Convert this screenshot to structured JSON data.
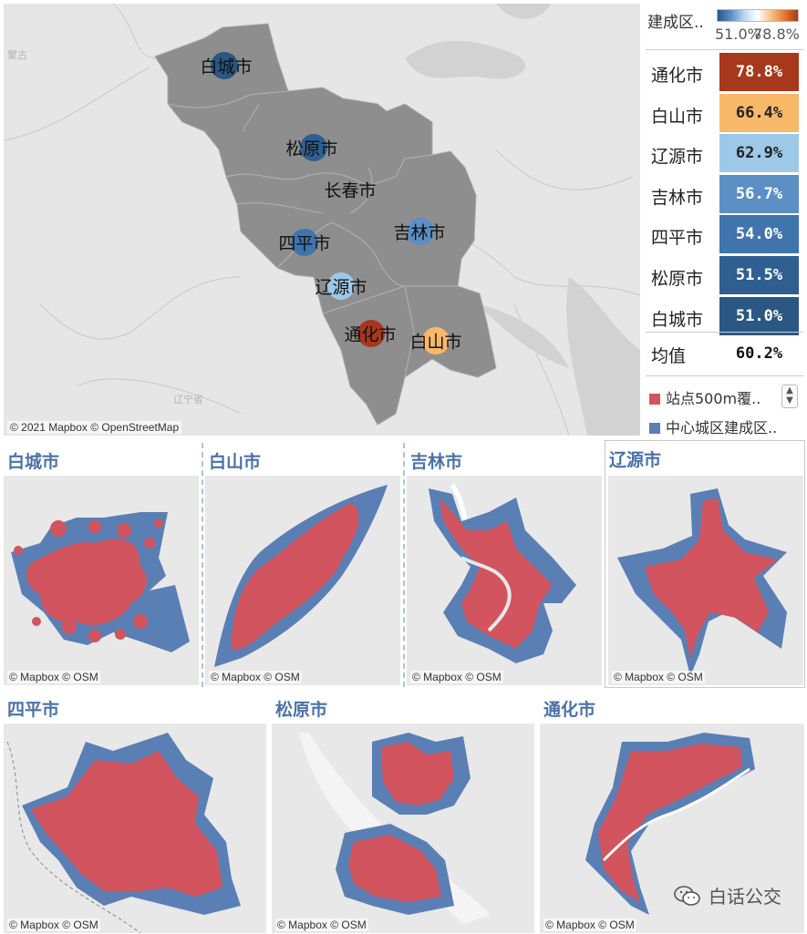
{
  "main_map": {
    "attribution": "© 2021 Mapbox © OpenStreetMap",
    "faint_labels": [
      "蒙古",
      "辽宁省"
    ],
    "cities": [
      {
        "name": "白城市",
        "value": 51.0,
        "color": "#2a5783"
      },
      {
        "name": "松原市",
        "value": 51.5,
        "color": "#2f5f90"
      },
      {
        "name": "长春市",
        "value": null,
        "color": null
      },
      {
        "name": "吉林市",
        "value": 56.7,
        "color": "#5b8fc5"
      },
      {
        "name": "四平市",
        "value": 54.0,
        "color": "#3f74ad"
      },
      {
        "name": "辽源市",
        "value": 62.9,
        "color": "#9dc8e8"
      },
      {
        "name": "通化市",
        "value": 78.8,
        "color": "#a8381b"
      },
      {
        "name": "白山市",
        "value": 66.4,
        "color": "#f8b869"
      }
    ]
  },
  "legend": {
    "color_title": "建成区..",
    "color_min": "51.0%",
    "color_max": "78.8%",
    "ranking": [
      {
        "city": "通化市",
        "value": "78.8%",
        "bg": "#a8381b",
        "fg": "#ffffff"
      },
      {
        "city": "白山市",
        "value": "66.4%",
        "bg": "#f8b869",
        "fg": "#222222"
      },
      {
        "city": "辽源市",
        "value": "62.9%",
        "bg": "#9dc8e8",
        "fg": "#222222"
      },
      {
        "city": "吉林市",
        "value": "56.7%",
        "bg": "#5b8fc5",
        "fg": "#ffffff"
      },
      {
        "city": "四平市",
        "value": "54.0%",
        "bg": "#3f74ad",
        "fg": "#ffffff"
      },
      {
        "city": "松原市",
        "value": "51.5%",
        "bg": "#2f5f90",
        "fg": "#ffffff"
      },
      {
        "city": "白城市",
        "value": "51.0%",
        "bg": "#2a5783",
        "fg": "#ffffff"
      }
    ],
    "average_label": "均值",
    "average_value": "60.2%",
    "keys": [
      {
        "label": "站点500m覆..",
        "color": "#d1545e"
      },
      {
        "label": "中心城区建成区..",
        "color": "#5a7fb5"
      }
    ]
  },
  "panels": [
    {
      "title": "白城市",
      "attribution": "© Mapbox © OSM"
    },
    {
      "title": "白山市",
      "attribution": "© Mapbox © OSM"
    },
    {
      "title": "吉林市",
      "attribution": "© Mapbox © OSM"
    },
    {
      "title": "辽源市",
      "attribution": "© Mapbox © OSM"
    },
    {
      "title": "四平市",
      "attribution": "© Mapbox © OSM"
    },
    {
      "title": "松原市",
      "attribution": "© Mapbox © OSM"
    },
    {
      "title": "通化市",
      "attribution": "© Mapbox © OSM"
    }
  ],
  "watermark": "白话公交",
  "colors": {
    "coverage": "#d1545e",
    "built_up": "#5a7fb5",
    "province": "#8e8e8e"
  }
}
